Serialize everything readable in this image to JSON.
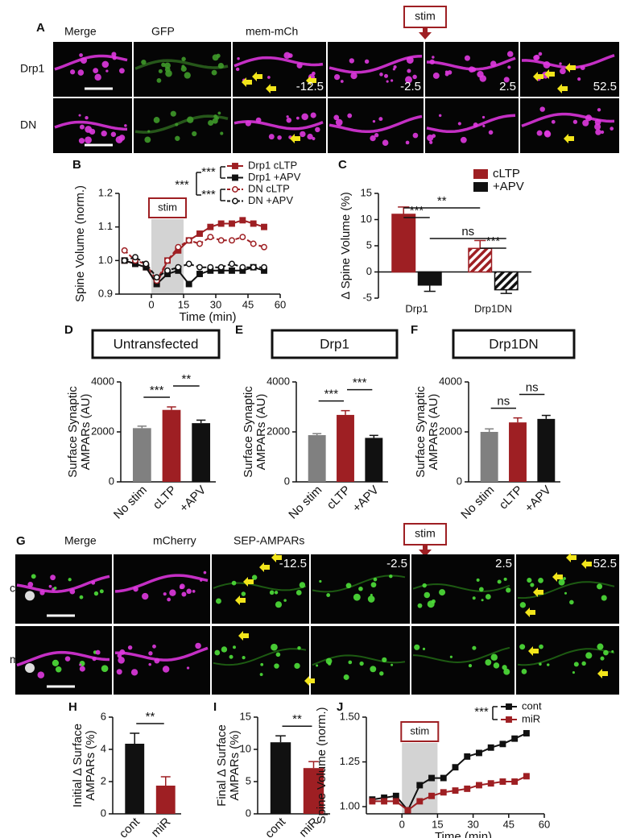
{
  "image_panels": [
    {
      "letter": "A",
      "stim": "stim",
      "columns": [
        "Merge",
        "GFP",
        "mem-mCh"
      ],
      "rows": [
        "Drp1",
        "DN"
      ],
      "times": [
        -12.5,
        -2.5,
        2.5,
        52.5
      ]
    },
    {
      "letter": "G",
      "stim": "stim",
      "columns": [
        "Merge",
        "mCherry",
        "SEP-AMPARs"
      ],
      "rows": [
        "cont",
        "miR"
      ],
      "times": [
        -12.5,
        -2.5,
        2.5,
        52.5
      ]
    }
  ],
  "chart_data": [
    {
      "letter": "B",
      "type": "line",
      "ylabel": "Spine Volume (norm.)",
      "xlabel": "Time (min)",
      "annotation": "stim",
      "shade": [
        0,
        15
      ],
      "xlim": [
        -15,
        60
      ],
      "xticks": [
        0,
        15,
        30,
        45,
        60
      ],
      "ylim": [
        0.9,
        1.2
      ],
      "yticks": [
        0.9,
        {
          "value": 1,
          "label": "1.0"
        },
        1.1,
        1.2
      ],
      "x": [
        -12.5,
        -7.5,
        -2.5,
        2.5,
        7.5,
        12.5,
        17.5,
        22.5,
        27.5,
        32.5,
        37.5,
        42.5,
        47.5,
        52.5
      ],
      "series": [
        {
          "name": "Drp1 cLTP",
          "color": "#9e1f23",
          "dash": false,
          "marker": "square",
          "filled": true,
          "values": [
            1.0,
            0.99,
            0.98,
            0.93,
            1.0,
            1.03,
            1.06,
            1.08,
            1.1,
            1.11,
            1.11,
            1.12,
            1.11,
            1.1
          ]
        },
        {
          "name": "Drp1 +APV",
          "color": "#111111",
          "dash": false,
          "marker": "square",
          "filled": true,
          "values": [
            1.0,
            0.99,
            0.98,
            0.93,
            0.96,
            0.97,
            0.93,
            0.96,
            0.97,
            0.97,
            0.97,
            0.97,
            0.98,
            0.97
          ]
        },
        {
          "name": "DN cLTP",
          "color": "#9e1f23",
          "dash": true,
          "marker": "circle",
          "filled": false,
          "values": [
            1.03,
            1.0,
            0.99,
            0.94,
            1.0,
            1.04,
            1.06,
            1.05,
            1.07,
            1.06,
            1.06,
            1.07,
            1.05,
            1.04
          ]
        },
        {
          "name": "DN +APV",
          "color": "#111111",
          "dash": true,
          "marker": "circle",
          "filled": false,
          "values": [
            1.0,
            1.01,
            0.99,
            0.95,
            0.97,
            0.98,
            0.99,
            0.98,
            0.98,
            0.98,
            0.99,
            0.98,
            0.98,
            0.98
          ]
        }
      ],
      "significance": [
        "***",
        "***",
        "***"
      ]
    },
    {
      "letter": "C",
      "type": "bar",
      "ylabel": "Δ Spine Volume (%)",
      "categories": [
        "Drp1",
        "Drp1DN"
      ],
      "ylim": [
        -5,
        15
      ],
      "yticks": [
        -5,
        0,
        5,
        10,
        15
      ],
      "series": [
        {
          "name": "cLTP",
          "color": "#9e1f23",
          "hatch": [
            false,
            true
          ],
          "values": [
            11,
            4.5
          ],
          "errors": [
            1.4,
            1.5
          ]
        },
        {
          "name": "+APV",
          "color": "#111111",
          "hatch": [
            false,
            true
          ],
          "values": [
            -2.5,
            -3.4
          ],
          "errors": [
            1.2,
            0.7
          ]
        }
      ],
      "significance": [
        "**",
        "***",
        "ns",
        "***"
      ]
    },
    {
      "letter": "D",
      "type": "bar",
      "title": "Untransfected",
      "ylabel": [
        "Surface Synaptic",
        "AMPARs (AU)"
      ],
      "categories": [
        "No stim",
        "cLTP",
        "+APV"
      ],
      "colors": [
        "#808080",
        "#9e1f23",
        "#111111"
      ],
      "values": [
        2150,
        2880,
        2350
      ],
      "errors": [
        80,
        120,
        120
      ],
      "ylim": [
        0,
        4000
      ],
      "yticks": [
        0,
        2000,
        4000
      ],
      "significance": [
        "***",
        "**"
      ]
    },
    {
      "letter": "E",
      "type": "bar",
      "title": "Drp1",
      "ylabel": [
        "Surface Synaptic",
        "AMPARs (AU)"
      ],
      "categories": [
        "No stim",
        "cLTP",
        "+APV"
      ],
      "colors": [
        "#808080",
        "#9e1f23",
        "#111111"
      ],
      "values": [
        1870,
        2680,
        1760
      ],
      "errors": [
        60,
        170,
        100
      ],
      "ylim": [
        0,
        4000
      ],
      "yticks": [
        0,
        2000,
        4000
      ],
      "significance": [
        "***",
        "***"
      ]
    },
    {
      "letter": "F",
      "type": "bar",
      "title": "Drp1DN",
      "ylabel": [
        "Surface Synaptic",
        "AMPARs (AU)"
      ],
      "categories": [
        "No stim",
        "cLTP",
        "+APV"
      ],
      "colors": [
        "#808080",
        "#9e1f23",
        "#111111"
      ],
      "values": [
        2000,
        2380,
        2520
      ],
      "errors": [
        120,
        180,
        140
      ],
      "ylim": [
        0,
        4000
      ],
      "yticks": [
        0,
        2000,
        4000
      ],
      "significance": [
        "ns",
        "ns"
      ]
    },
    {
      "letter": "H",
      "type": "bar",
      "ylabel": [
        "Initial Δ Surface",
        "AMPARs (%)"
      ],
      "categories": [
        "cont",
        "miR"
      ],
      "colors": [
        "#111111",
        "#9e1f23"
      ],
      "values": [
        4.35,
        1.75
      ],
      "errors": [
        0.65,
        0.55
      ],
      "ylim": [
        0,
        6
      ],
      "yticks": [
        0,
        2,
        4,
        6
      ],
      "significance": [
        "**"
      ]
    },
    {
      "letter": "I",
      "type": "bar",
      "ylabel": [
        "Final Δ Surface",
        "AMPARs (%)"
      ],
      "categories": [
        "cont",
        "miR"
      ],
      "colors": [
        "#111111",
        "#9e1f23"
      ],
      "values": [
        11.1,
        7.1
      ],
      "errors": [
        1.0,
        1.0
      ],
      "ylim": [
        0,
        15
      ],
      "yticks": [
        0,
        5,
        10,
        15
      ],
      "significance": [
        "**"
      ]
    },
    {
      "letter": "J",
      "type": "line",
      "ylabel": "Spine Volume (norm.)",
      "xlabel": "Time (min)",
      "annotation": "stim",
      "shade": [
        0,
        15
      ],
      "xlim": [
        -15,
        60
      ],
      "xticks": [
        0,
        15,
        30,
        45,
        60
      ],
      "ylim": [
        0.96,
        1.5
      ],
      "yticks": [
        {
          "value": 1,
          "label": "1.00"
        },
        1.25,
        {
          "value": 1.5,
          "label": "1.50"
        }
      ],
      "x": [
        -12.5,
        -7.5,
        -2.5,
        2.5,
        7.5,
        12.5,
        17.5,
        22.5,
        27.5,
        32.5,
        37.5,
        42.5,
        47.5,
        52.5
      ],
      "series": [
        {
          "name": "cont",
          "color": "#111111",
          "dash": false,
          "marker": "square",
          "filled": true,
          "values": [
            1.04,
            1.05,
            1.06,
            0.98,
            1.12,
            1.16,
            1.16,
            1.22,
            1.28,
            1.3,
            1.33,
            1.35,
            1.38,
            1.41
          ]
        },
        {
          "name": "miR",
          "color": "#9e1f23",
          "dash": false,
          "marker": "square",
          "filled": true,
          "values": [
            1.03,
            1.03,
            1.03,
            0.98,
            1.03,
            1.06,
            1.08,
            1.09,
            1.1,
            1.12,
            1.13,
            1.14,
            1.14,
            1.17
          ]
        }
      ],
      "significance": [
        "***"
      ]
    }
  ]
}
